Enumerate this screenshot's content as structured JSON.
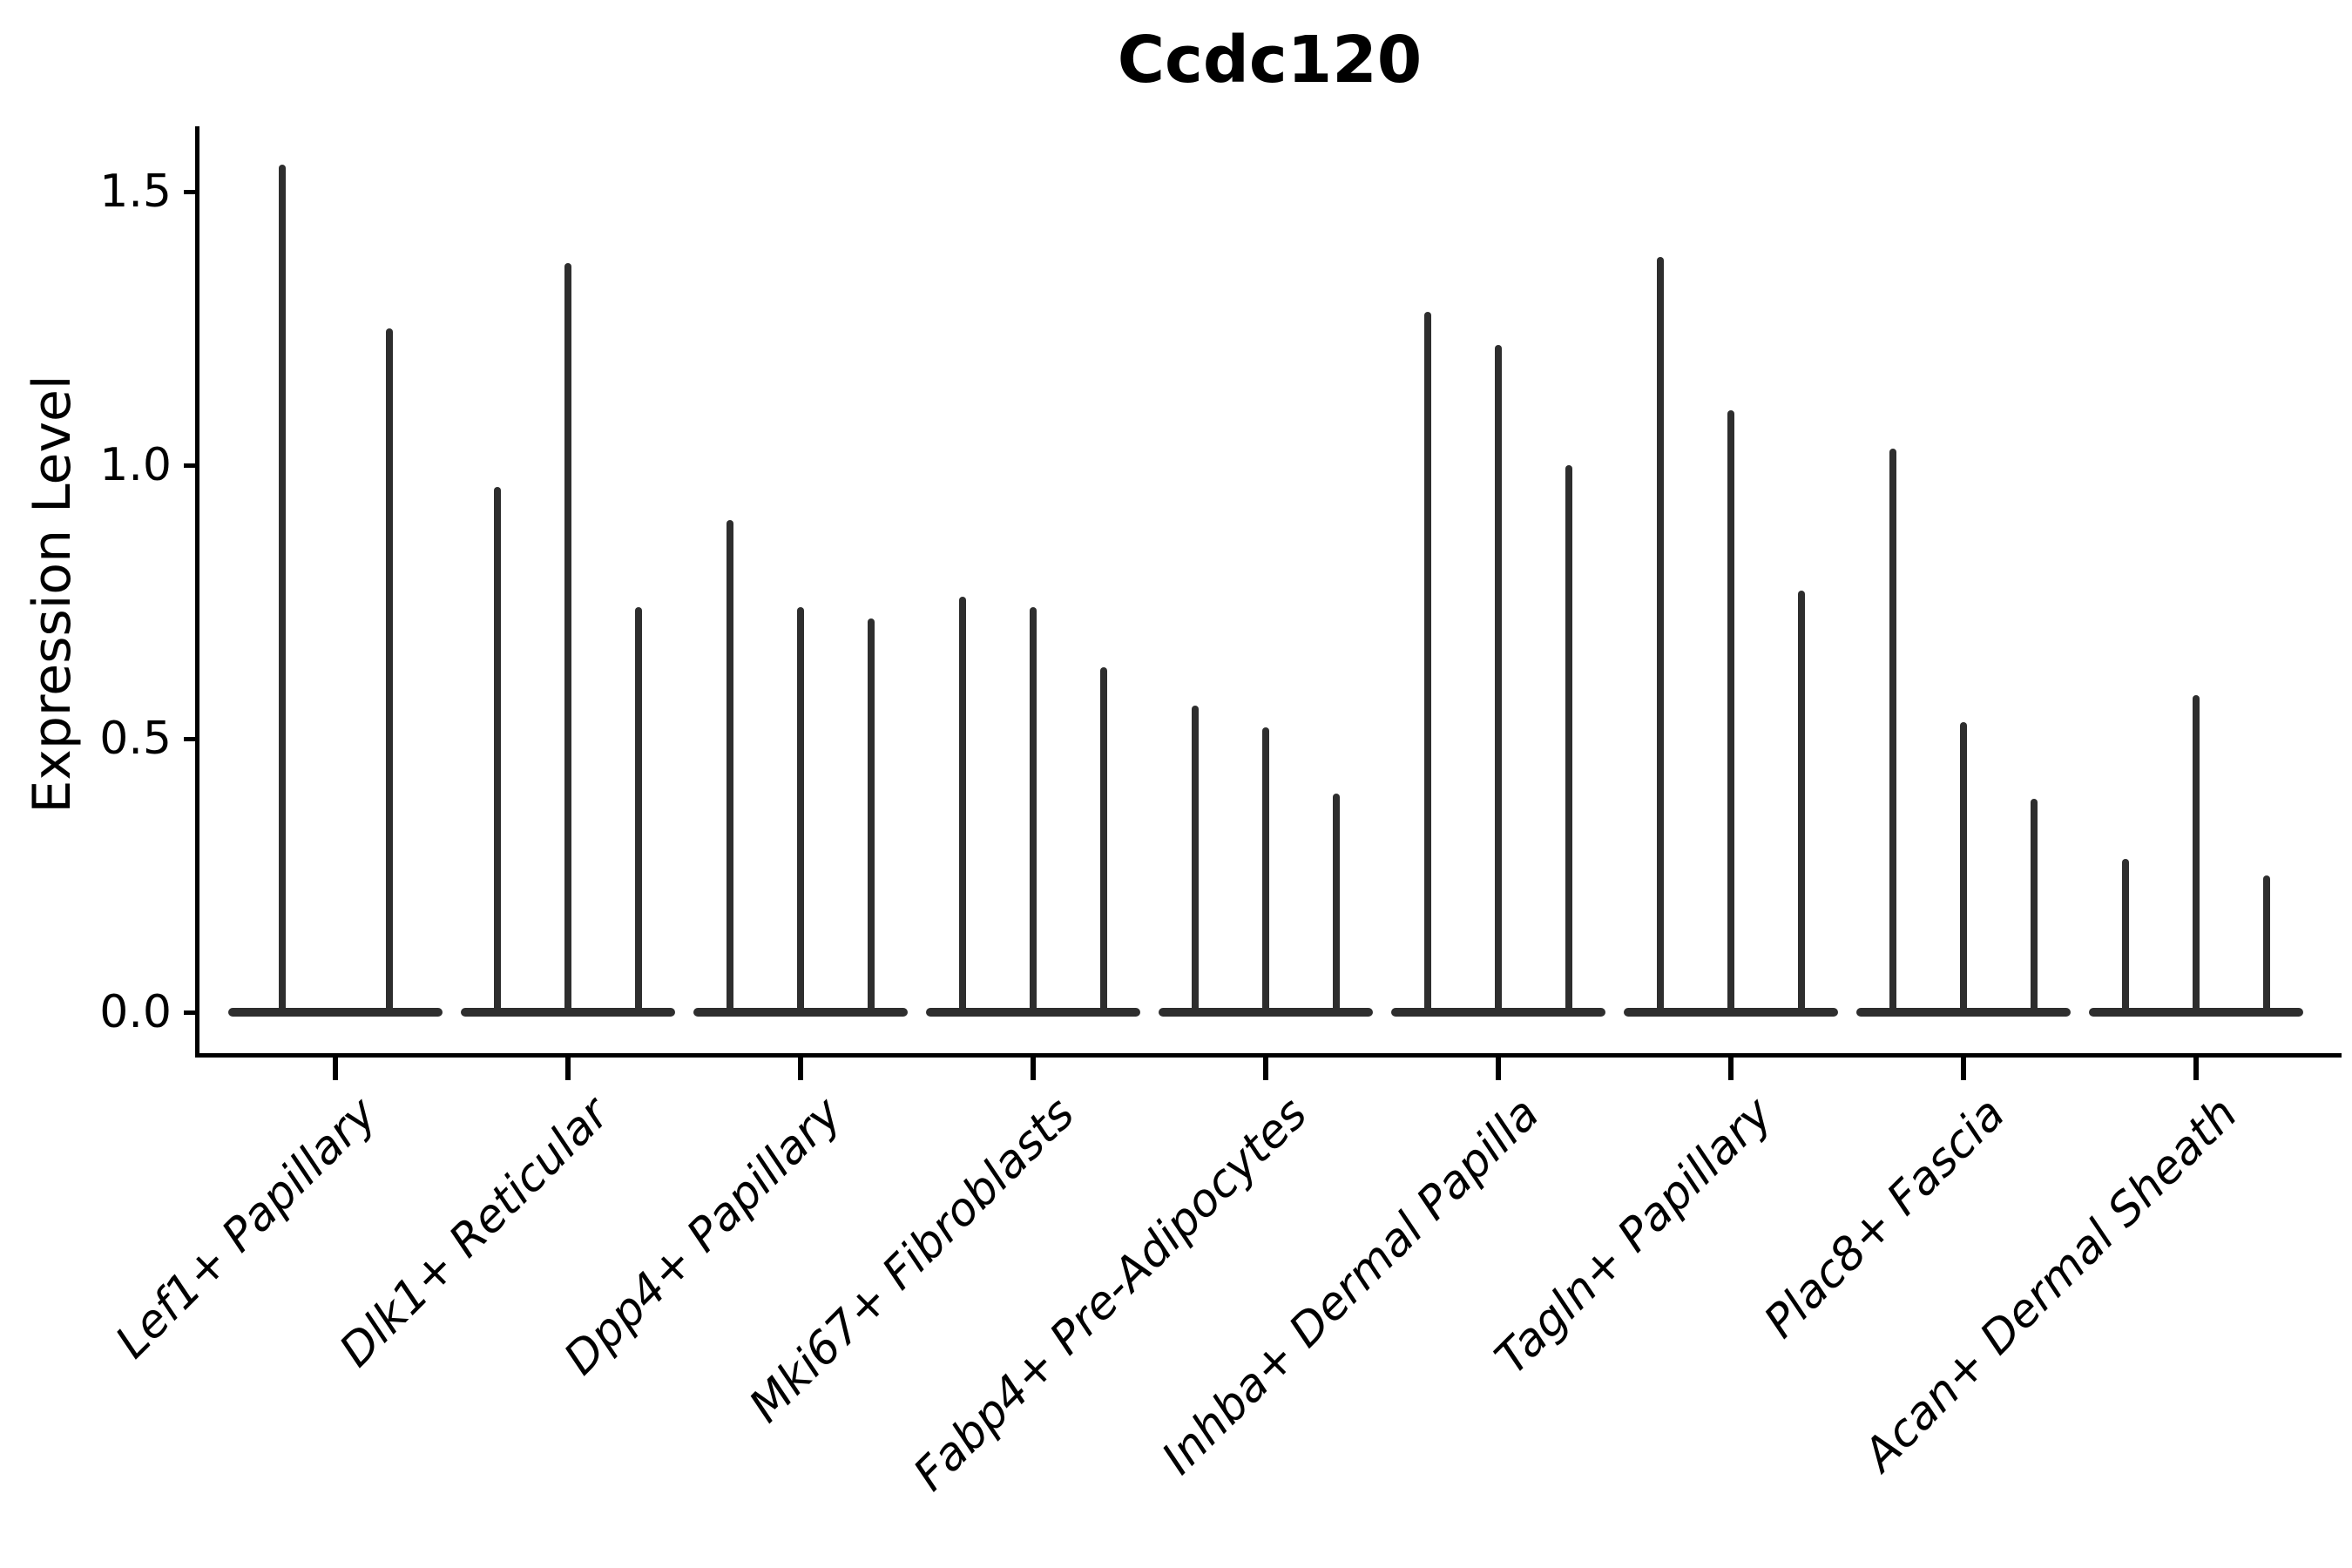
{
  "title": "Ccdc120",
  "ylabel": "Expression Level",
  "chart_data": {
    "type": "violin",
    "title": "Ccdc120",
    "xlabel": "",
    "ylabel": "Expression Level",
    "ylim": [
      0,
      1.62
    ],
    "yticks": [
      0.0,
      0.5,
      1.0,
      1.5
    ],
    "ytick_labels": [
      "0.0",
      "0.5",
      "1.0",
      "1.5"
    ],
    "grid": false,
    "legend": "none",
    "description": "Single-cell expression violin plot; each category holds 2-3 narrow spike-shaped violins (max expression of each sub-violin listed in values).",
    "categories": [
      "Lef1+ Papillary",
      "Dlk1+ Reticular",
      "Dpp4+ Papillary",
      "Mki67+ Fibroblasts",
      "Fabp4+ Pre-Adipocytes",
      "Inhba+ Dermal Papilla",
      "Tagln+ Papillary",
      "Plac8+ Fascia",
      "Acan+ Dermal Sheath"
    ],
    "values": [
      [
        1.55,
        1.25
      ],
      [
        0.96,
        1.37,
        0.74
      ],
      [
        0.9,
        0.74,
        0.72
      ],
      [
        0.76,
        0.74,
        0.63
      ],
      [
        0.56,
        0.52,
        0.4
      ],
      [
        1.28,
        1.22,
        1.0
      ],
      [
        1.38,
        1.1,
        0.77
      ],
      [
        1.03,
        0.53,
        0.39
      ],
      [
        0.28,
        0.58,
        0.25
      ]
    ],
    "colors": {
      "violin": "#2e2e2e",
      "axis": "#000000",
      "background": "#ffffff"
    }
  }
}
